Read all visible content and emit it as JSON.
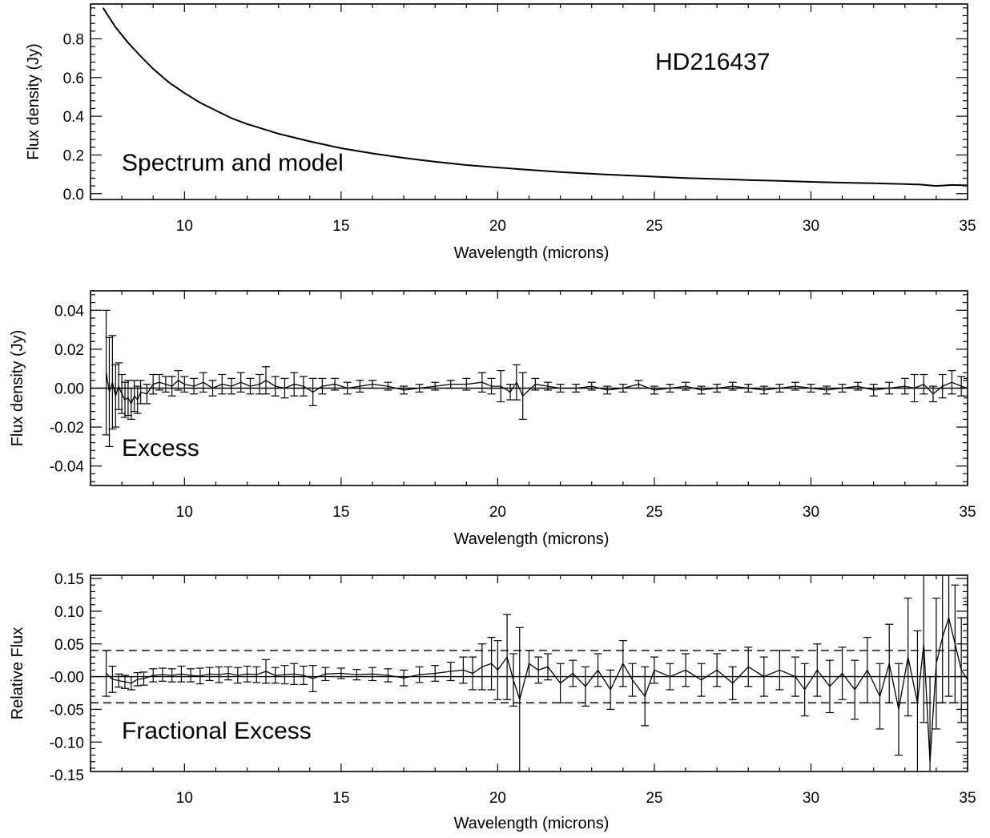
{
  "figure": {
    "object_name": "HD216437"
  },
  "chart_data": [
    {
      "type": "line",
      "panel_label": "Spectrum and model",
      "xlabel": "Wavelength (microns)",
      "ylabel": "Flux density (Jy)",
      "xlim": [
        7.0,
        35.0
      ],
      "ylim": [
        -0.03,
        0.98
      ],
      "xticks": [
        10,
        15,
        20,
        25,
        30,
        35
      ],
      "xtick_labels": [
        "10",
        "15",
        "20",
        "25",
        "30",
        "35"
      ],
      "yticks": [
        0.0,
        0.2,
        0.4,
        0.6,
        0.8
      ],
      "ytick_labels": [
        "0.0",
        "0.2",
        "0.4",
        "0.6",
        "0.8"
      ],
      "series": [
        {
          "style": "solid",
          "x": [
            7.4,
            7.8,
            8.2,
            8.6,
            9.0,
            9.5,
            10.0,
            10.5,
            11.0,
            11.5,
            12.0,
            12.5,
            13.0,
            14.0,
            15.0,
            16.0,
            17.0,
            18.0,
            19.0,
            20.0,
            21.0,
            22.0,
            23.0,
            24.0,
            25.0,
            26.0,
            27.0,
            28.0,
            29.0,
            30.0,
            31.0,
            32.0,
            33.0,
            33.5,
            34.0,
            34.5,
            35.0
          ],
          "y": [
            0.96,
            0.86,
            0.78,
            0.71,
            0.645,
            0.575,
            0.52,
            0.47,
            0.43,
            0.39,
            0.36,
            0.335,
            0.31,
            0.27,
            0.235,
            0.208,
            0.185,
            0.165,
            0.148,
            0.135,
            0.123,
            0.112,
            0.103,
            0.095,
            0.088,
            0.081,
            0.076,
            0.07,
            0.066,
            0.061,
            0.057,
            0.054,
            0.05,
            0.047,
            0.04,
            0.045,
            0.043
          ]
        }
      ]
    },
    {
      "type": "line",
      "panel_label": "Excess",
      "xlabel": "Wavelength (microns)",
      "ylabel": "Flux density (Jy)",
      "xlim": [
        7.0,
        35.0
      ],
      "ylim": [
        -0.05,
        0.05
      ],
      "xticks": [
        10,
        15,
        20,
        25,
        30,
        35
      ],
      "xtick_labels": [
        "10",
        "15",
        "20",
        "25",
        "30",
        "35"
      ],
      "yticks": [
        -0.04,
        -0.02,
        0.0,
        0.02,
        0.04
      ],
      "ytick_labels": [
        "-0.04",
        "-0.02",
        "0.00",
        "0.02",
        "0.04"
      ],
      "reference_lines": [
        0.0
      ],
      "series": [
        {
          "style": "errorbar",
          "x": [
            7.5,
            7.6,
            7.7,
            7.8,
            7.9,
            8.0,
            8.1,
            8.2,
            8.3,
            8.4,
            8.5,
            8.6,
            8.8,
            9.0,
            9.2,
            9.4,
            9.6,
            9.8,
            10.0,
            10.3,
            10.6,
            10.9,
            11.2,
            11.5,
            11.8,
            12.1,
            12.4,
            12.6,
            12.9,
            13.2,
            13.5,
            13.8,
            14.1,
            14.4,
            14.8,
            15.2,
            15.6,
            16.0,
            16.5,
            17.0,
            17.5,
            18.0,
            18.5,
            19.0,
            19.5,
            19.8,
            20.1,
            20.4,
            20.6,
            20.8,
            21.2,
            21.6,
            22.0,
            22.5,
            23.0,
            23.5,
            24.0,
            24.5,
            25.0,
            25.5,
            26.0,
            26.5,
            27.0,
            27.5,
            28.0,
            28.5,
            29.0,
            29.5,
            30.0,
            30.5,
            31.0,
            31.5,
            32.0,
            32.5,
            33.0,
            33.3,
            33.6,
            33.9,
            34.2,
            34.5,
            34.8,
            35.0
          ],
          "y": [
            0.008,
            -0.002,
            0.003,
            -0.004,
            0.001,
            -0.003,
            -0.006,
            -0.005,
            -0.008,
            -0.004,
            -0.006,
            -0.002,
            -0.003,
            0.002,
            0.003,
            0.002,
            0.001,
            0.004,
            0.002,
            0.001,
            0.003,
            0.0,
            0.002,
            0.001,
            0.003,
            0.001,
            0.002,
            0.004,
            0.001,
            0.0,
            0.002,
            0.001,
            -0.002,
            0.001,
            0.002,
            0.0,
            0.001,
            0.002,
            0.001,
            -0.001,
            0.0,
            0.001,
            0.002,
            0.002,
            0.003,
            0.001,
            0.001,
            -0.002,
            0.003,
            -0.004,
            0.002,
            0.001,
            0.0,
            0.0,
            0.001,
            -0.001,
            0.0,
            0.002,
            -0.001,
            0.0,
            0.001,
            -0.001,
            0.0,
            0.001,
            0.0,
            -0.001,
            0.0,
            0.001,
            0.0,
            -0.001,
            0.0,
            0.001,
            -0.001,
            0.0,
            0.001,
            0.0,
            0.002,
            -0.003,
            0.001,
            0.003,
            0.001,
            0.0
          ],
          "err": [
            0.032,
            0.028,
            0.024,
            0.016,
            0.012,
            0.01,
            0.009,
            0.009,
            0.008,
            0.008,
            0.007,
            0.006,
            0.005,
            0.005,
            0.004,
            0.004,
            0.005,
            0.005,
            0.004,
            0.004,
            0.005,
            0.004,
            0.005,
            0.004,
            0.005,
            0.004,
            0.005,
            0.007,
            0.005,
            0.005,
            0.006,
            0.005,
            0.007,
            0.004,
            0.003,
            0.003,
            0.003,
            0.002,
            0.002,
            0.002,
            0.002,
            0.002,
            0.002,
            0.003,
            0.005,
            0.004,
            0.008,
            0.004,
            0.009,
            0.012,
            0.003,
            0.002,
            0.002,
            0.002,
            0.002,
            0.002,
            0.002,
            0.002,
            0.002,
            0.002,
            0.002,
            0.002,
            0.002,
            0.002,
            0.002,
            0.002,
            0.002,
            0.002,
            0.002,
            0.002,
            0.002,
            0.002,
            0.003,
            0.003,
            0.004,
            0.007,
            0.005,
            0.004,
            0.006,
            0.006,
            0.005,
            0.005
          ]
        }
      ]
    },
    {
      "type": "line",
      "panel_label": "Fractional Excess",
      "xlabel": "Wavelength (microns)",
      "ylabel": "Relative Flux",
      "xlim": [
        7.0,
        35.0
      ],
      "ylim": [
        -0.145,
        0.155
      ],
      "xticks": [
        10,
        15,
        20,
        25,
        30,
        35
      ],
      "xtick_labels": [
        "10",
        "15",
        "20",
        "25",
        "30",
        "35"
      ],
      "yticks": [
        -0.15,
        -0.1,
        -0.05,
        0.0,
        0.05,
        0.1,
        0.15
      ],
      "ytick_labels": [
        "-0.15",
        "-0.10",
        "-0.05",
        "-0.00",
        "0.05",
        "0.10",
        "0.15"
      ],
      "reference_lines": [
        0.0,
        0.04,
        -0.04
      ],
      "series": [
        {
          "style": "errorbar",
          "x": [
            7.5,
            7.7,
            7.9,
            8.1,
            8.3,
            8.5,
            8.7,
            9.0,
            9.3,
            9.6,
            9.9,
            10.2,
            10.5,
            10.8,
            11.1,
            11.4,
            11.7,
            12.0,
            12.3,
            12.6,
            12.9,
            13.2,
            13.5,
            13.8,
            14.1,
            14.5,
            15.0,
            15.5,
            16.0,
            16.5,
            17.0,
            17.5,
            18.0,
            18.5,
            18.9,
            19.2,
            19.5,
            19.8,
            20.0,
            20.3,
            20.5,
            20.7,
            21.0,
            21.3,
            21.6,
            22.0,
            22.4,
            22.8,
            23.2,
            23.6,
            24.0,
            24.3,
            24.7,
            25.0,
            25.5,
            26.0,
            26.5,
            27.0,
            27.5,
            28.0,
            28.5,
            29.0,
            29.5,
            29.8,
            30.2,
            30.6,
            31.0,
            31.4,
            31.8,
            32.2,
            32.5,
            32.8,
            33.1,
            33.4,
            33.6,
            33.8,
            34.0,
            34.2,
            34.4,
            34.6,
            34.8,
            35.0
          ],
          "y": [
            0.005,
            -0.004,
            -0.006,
            -0.008,
            -0.01,
            -0.004,
            -0.003,
            0.002,
            0.003,
            0.002,
            0.004,
            0.002,
            0.001,
            0.004,
            0.003,
            0.005,
            0.002,
            0.004,
            0.003,
            0.008,
            0.002,
            0.003,
            0.004,
            0.002,
            -0.003,
            0.004,
            0.005,
            0.003,
            0.004,
            0.002,
            -0.002,
            0.003,
            0.005,
            0.008,
            0.01,
            0.005,
            0.015,
            0.02,
            0.01,
            0.03,
            -0.005,
            -0.035,
            0.02,
            0.01,
            0.015,
            -0.01,
            0.005,
            -0.015,
            0.01,
            -0.02,
            0.02,
            -0.005,
            -0.03,
            0.01,
            0.0,
            0.01,
            -0.005,
            0.01,
            -0.01,
            0.015,
            0.0,
            0.01,
            0.0,
            -0.02,
            0.01,
            -0.015,
            0.005,
            -0.02,
            0.01,
            -0.03,
            0.02,
            -0.05,
            0.03,
            -0.04,
            0.05,
            -0.13,
            0.02,
            0.06,
            0.09,
            0.05,
            0.01,
            -0.005
          ],
          "err": [
            0.035,
            0.02,
            0.01,
            0.01,
            0.01,
            0.01,
            0.01,
            0.01,
            0.01,
            0.01,
            0.012,
            0.01,
            0.012,
            0.01,
            0.012,
            0.01,
            0.012,
            0.012,
            0.012,
            0.018,
            0.012,
            0.014,
            0.016,
            0.014,
            0.02,
            0.01,
            0.008,
            0.008,
            0.01,
            0.01,
            0.012,
            0.012,
            0.012,
            0.014,
            0.02,
            0.025,
            0.035,
            0.04,
            0.045,
            0.065,
            0.04,
            0.11,
            0.02,
            0.02,
            0.02,
            0.03,
            0.02,
            0.03,
            0.025,
            0.03,
            0.035,
            0.025,
            0.045,
            0.02,
            0.02,
            0.025,
            0.025,
            0.025,
            0.025,
            0.03,
            0.03,
            0.03,
            0.03,
            0.04,
            0.04,
            0.04,
            0.04,
            0.045,
            0.05,
            0.05,
            0.06,
            0.07,
            0.09,
            0.11,
            0.12,
            0.13,
            0.1,
            0.1,
            0.12,
            0.09,
            0.08,
            0.12
          ]
        }
      ]
    }
  ]
}
